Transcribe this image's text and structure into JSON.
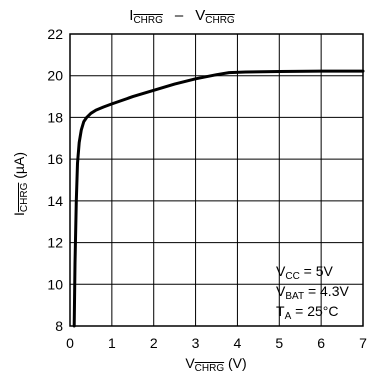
{
  "chart_data": {
    "type": "line",
    "title": {
      "left": {
        "main": "I",
        "sub": "CHRG",
        "overline": true
      },
      "sep": "–",
      "right": {
        "main": "V",
        "sub": "CHRG",
        "overline": true
      }
    },
    "xlabel": {
      "main": "V",
      "sub": "CHRG",
      "overline": true,
      "unit": " (V)"
    },
    "ylabel": {
      "main": "I",
      "sub": "CHRG",
      "overline": true,
      "unit": " (µA)"
    },
    "xlim": [
      0,
      7
    ],
    "ylim": [
      8,
      22
    ],
    "xticks": [
      0,
      1,
      2,
      3,
      4,
      5,
      6,
      7
    ],
    "yticks": [
      8,
      10,
      12,
      14,
      16,
      18,
      20,
      22
    ],
    "grid": true,
    "conditions": [
      {
        "main": "V",
        "sub": "CC",
        "value": " = 5V"
      },
      {
        "main": "V",
        "sub": "BAT",
        "value": " = 4.3V"
      },
      {
        "main": "T",
        "sub": "A",
        "value": " = 25°C"
      }
    ],
    "series": [
      {
        "x": [
          0.1,
          0.12,
          0.15,
          0.18,
          0.22,
          0.27,
          0.33,
          0.4,
          0.5,
          0.62,
          0.8,
          1.0,
          1.5,
          2.0,
          2.5,
          3.0,
          3.5,
          3.8,
          4.2,
          5.0,
          6.0,
          7.0
        ],
        "y": [
          8.0,
          11.0,
          14.0,
          15.8,
          16.8,
          17.4,
          17.8,
          18.0,
          18.2,
          18.35,
          18.5,
          18.65,
          19.0,
          19.3,
          19.6,
          19.85,
          20.05,
          20.15,
          20.18,
          20.2,
          20.22,
          20.22
        ]
      }
    ]
  }
}
